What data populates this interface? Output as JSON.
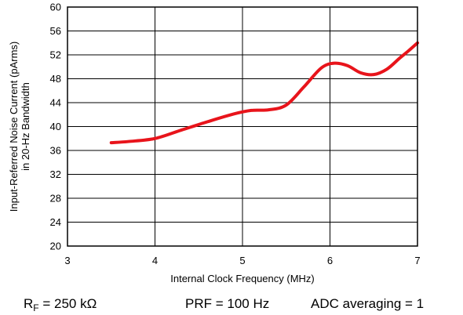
{
  "chart_data": {
    "type": "line",
    "xlabel": "Internal Clock Frequency (MHz)",
    "ylabel_line1": "Input-Referred Noise Current (pArms)",
    "ylabel_line2": "in 20-Hz Bandwidth",
    "xlim": [
      3,
      7
    ],
    "ylim": [
      20,
      60
    ],
    "x_ticks": [
      3,
      4,
      5,
      6,
      7
    ],
    "y_ticks": [
      20,
      24,
      28,
      32,
      36,
      40,
      44,
      48,
      52,
      56,
      60
    ],
    "grid": true,
    "legend": "none",
    "series": [
      {
        "color": "#e8141b",
        "x": [
          3.5,
          3.7,
          4.0,
          4.3,
          4.6,
          4.9,
          5.1,
          5.3,
          5.5,
          5.7,
          5.9,
          6.05,
          6.2,
          6.35,
          6.5,
          6.65,
          6.8,
          6.9,
          7.0
        ],
        "y": [
          37.3,
          37.5,
          38.0,
          39.4,
          40.8,
          42.1,
          42.7,
          42.8,
          43.6,
          46.6,
          49.8,
          50.6,
          50.2,
          49.0,
          48.7,
          49.6,
          51.5,
          52.7,
          54.0
        ]
      }
    ]
  },
  "footer": {
    "rf_main": "R",
    "rf_sub": "F",
    "rf_value": " = 250 kΩ",
    "prf": "PRF = 100 Hz",
    "adc": "ADC averaging = 1"
  }
}
